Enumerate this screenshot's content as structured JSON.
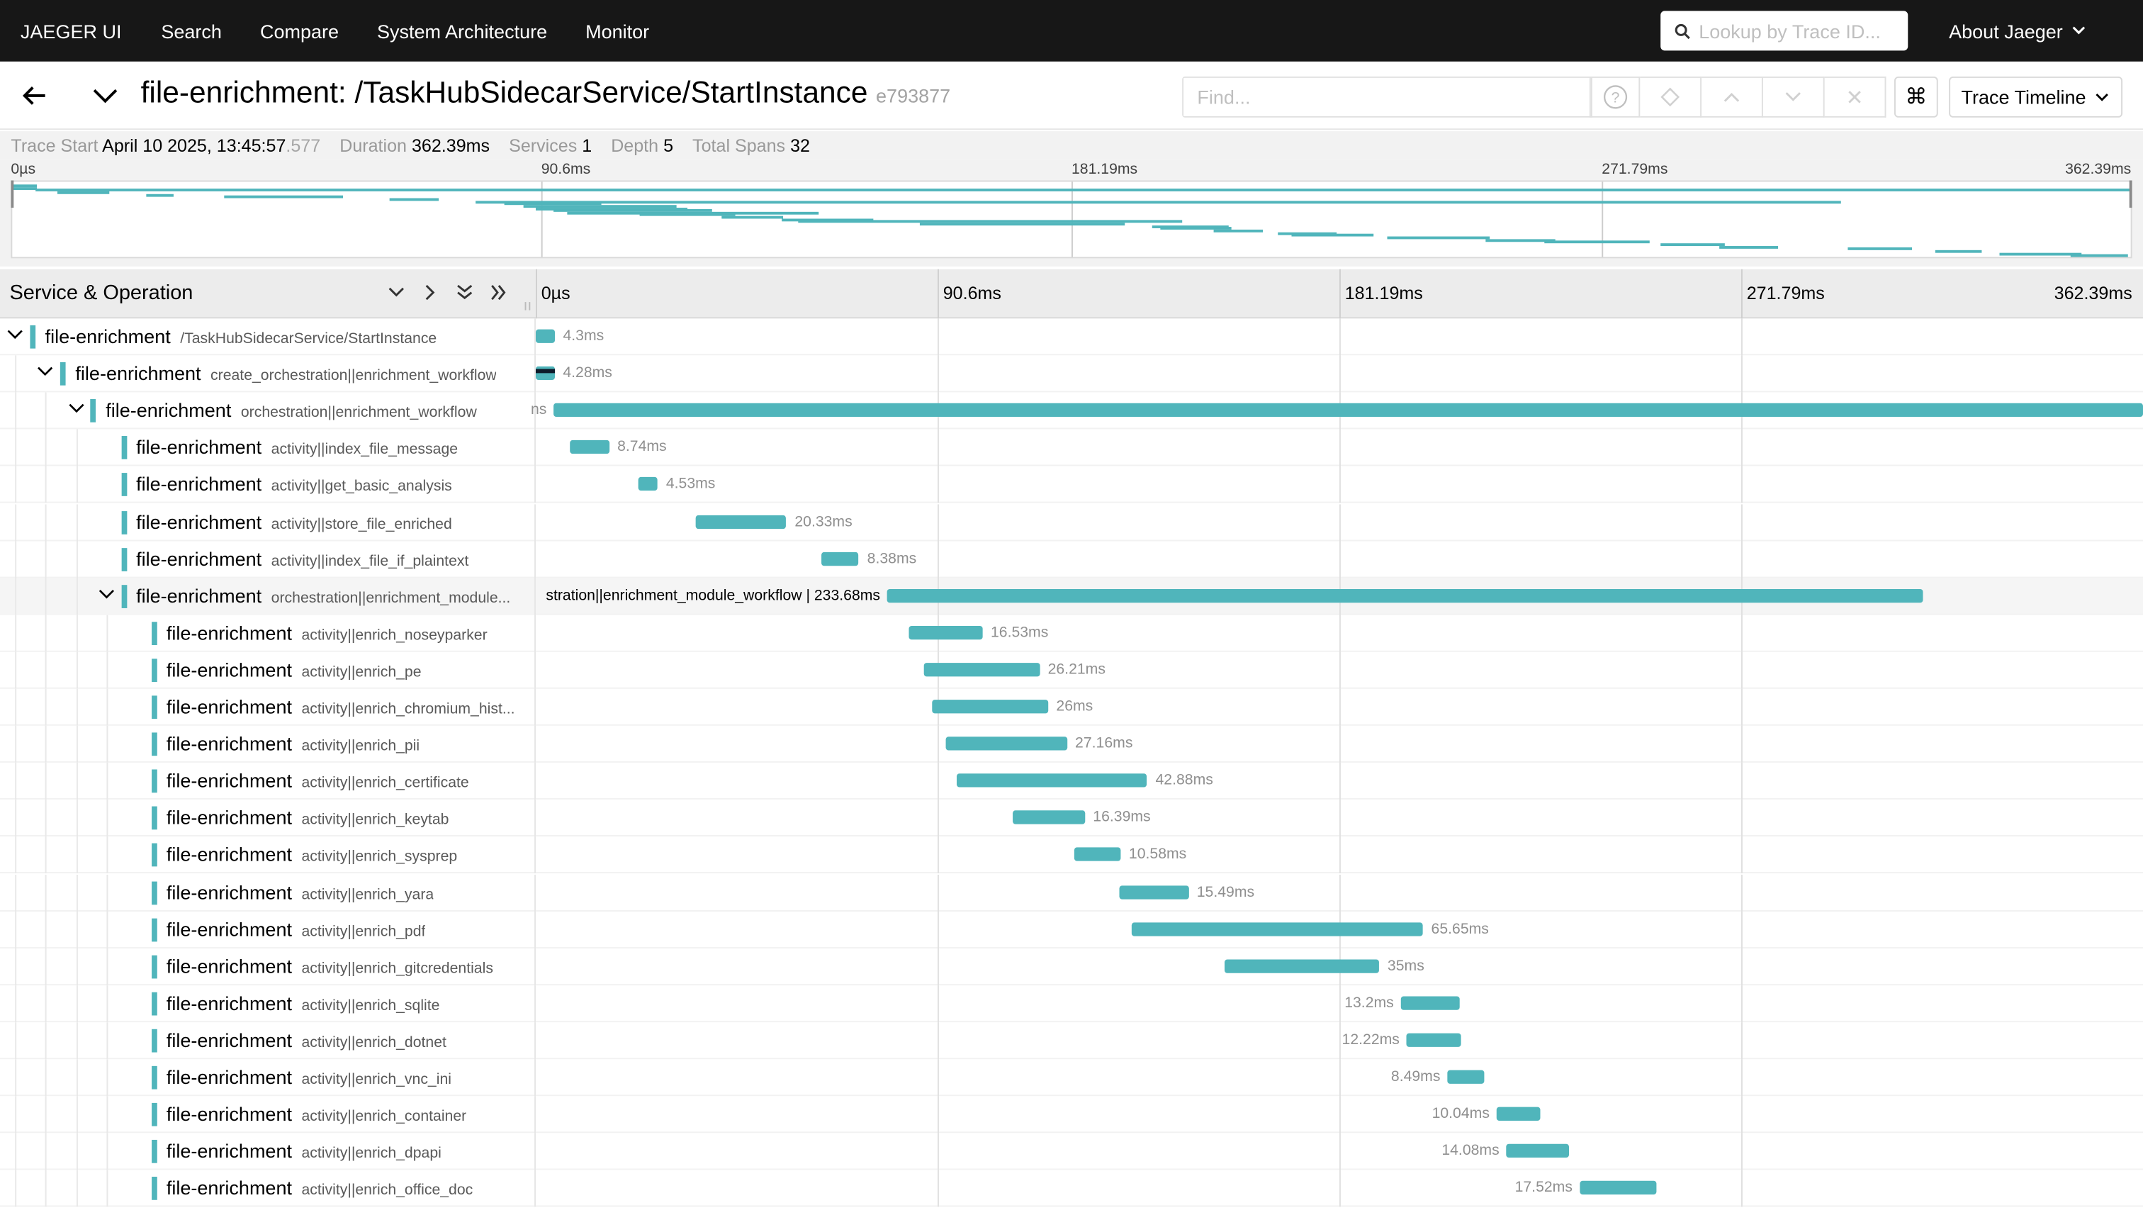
{
  "nav": {
    "brand": "JAEGER UI",
    "links": [
      "Search",
      "Compare",
      "System Architecture",
      "Monitor"
    ],
    "lookup_placeholder": "Lookup by Trace ID...",
    "about": "About Jaeger"
  },
  "trace": {
    "title": "file-enrichment: /TaskHubSidecarService/StartInstance",
    "id": "e793877",
    "find_placeholder": "Find...",
    "view": "Trace Timeline",
    "cmd_glyph": "⌘"
  },
  "summary": {
    "start_label": "Trace Start",
    "start_value": "April 10 2025, 13:45:57",
    "start_ms": ".577",
    "duration_label": "Duration",
    "duration_value": "362.39ms",
    "services_label": "Services",
    "services_value": "1",
    "depth_label": "Depth",
    "depth_value": "5",
    "spans_label": "Total Spans",
    "spans_value": "32"
  },
  "ticks": [
    "0µs",
    "90.6ms",
    "181.19ms",
    "271.79ms",
    "362.39ms"
  ],
  "timeline_header": "Service & Operation",
  "trace_duration_ms": 362.39,
  "spans": [
    {
      "service": "file-enrichment",
      "op": "/TaskHubSidecarService/StartInstance",
      "depth": 0,
      "start": 0.0,
      "dur": 4.3,
      "label": "4.3ms",
      "toggle": true
    },
    {
      "service": "file-enrichment",
      "op": "create_orchestration||enrichment_workflow",
      "depth": 1,
      "start": 0.0,
      "dur": 4.28,
      "label": "4.28ms",
      "toggle": true
    },
    {
      "service": "file-enrichment",
      "op": "orchestration||enrichment_workflow",
      "depth": 2,
      "start": 4.0,
      "dur": 358.39,
      "label": "ns",
      "label_left": true,
      "toggle": true
    },
    {
      "service": "file-enrichment",
      "op": "activity||index_file_message",
      "depth": 3,
      "start": 7.8,
      "dur": 8.74,
      "label": "8.74ms"
    },
    {
      "service": "file-enrichment",
      "op": "activity||get_basic_analysis",
      "depth": 3,
      "start": 23.0,
      "dur": 4.53,
      "label": "4.53ms"
    },
    {
      "service": "file-enrichment",
      "op": "activity||store_file_enriched",
      "depth": 3,
      "start": 36.2,
      "dur": 20.33,
      "label": "20.33ms"
    },
    {
      "service": "file-enrichment",
      "op": "activity||index_file_if_plaintext",
      "depth": 3,
      "start": 64.5,
      "dur": 8.38,
      "label": "8.38ms"
    },
    {
      "service": "file-enrichment",
      "op": "orchestration||enrichment_module...",
      "depth": 3,
      "start": 79.2,
      "dur": 233.68,
      "label": "stration||enrichment_module_workflow | 233.68ms",
      "label_left": true,
      "dark": true,
      "toggle": true,
      "highlight": true
    },
    {
      "service": "file-enrichment",
      "op": "activity||enrich_noseyparker",
      "depth": 4,
      "start": 84.2,
      "dur": 16.53,
      "label": "16.53ms"
    },
    {
      "service": "file-enrichment",
      "op": "activity||enrich_pe",
      "depth": 4,
      "start": 87.4,
      "dur": 26.21,
      "label": "26.21ms"
    },
    {
      "service": "file-enrichment",
      "op": "activity||enrich_chromium_hist...",
      "depth": 4,
      "start": 89.5,
      "dur": 26.0,
      "label": "26ms"
    },
    {
      "service": "file-enrichment",
      "op": "activity||enrich_pii",
      "depth": 4,
      "start": 92.6,
      "dur": 27.16,
      "label": "27.16ms"
    },
    {
      "service": "file-enrichment",
      "op": "activity||enrich_certificate",
      "depth": 4,
      "start": 95.0,
      "dur": 42.88,
      "label": "42.88ms"
    },
    {
      "service": "file-enrichment",
      "op": "activity||enrich_keytab",
      "depth": 4,
      "start": 107.4,
      "dur": 16.39,
      "label": "16.39ms"
    },
    {
      "service": "file-enrichment",
      "op": "activity||enrich_sysprep",
      "depth": 4,
      "start": 121.3,
      "dur": 10.58,
      "label": "10.58ms"
    },
    {
      "service": "file-enrichment",
      "op": "activity||enrich_yara",
      "depth": 4,
      "start": 131.7,
      "dur": 15.49,
      "label": "15.49ms"
    },
    {
      "service": "file-enrichment",
      "op": "activity||enrich_pdf",
      "depth": 4,
      "start": 134.4,
      "dur": 65.65,
      "label": "65.65ms"
    },
    {
      "service": "file-enrichment",
      "op": "activity||enrich_gitcredentials",
      "depth": 4,
      "start": 155.2,
      "dur": 35.0,
      "label": "35ms"
    },
    {
      "service": "file-enrichment",
      "op": "activity||enrich_sqlite",
      "depth": 4,
      "start": 195.0,
      "dur": 13.2,
      "label": "13.2ms",
      "label_left": true
    },
    {
      "service": "file-enrichment",
      "op": "activity||enrich_dotnet",
      "depth": 4,
      "start": 196.3,
      "dur": 12.22,
      "label": "12.22ms",
      "label_left": true
    },
    {
      "service": "file-enrichment",
      "op": "activity||enrich_vnc_ini",
      "depth": 4,
      "start": 205.5,
      "dur": 8.49,
      "label": "8.49ms",
      "label_left": true
    },
    {
      "service": "file-enrichment",
      "op": "activity||enrich_container",
      "depth": 4,
      "start": 216.6,
      "dur": 10.04,
      "label": "10.04ms",
      "label_left": true
    },
    {
      "service": "file-enrichment",
      "op": "activity||enrich_dpapi",
      "depth": 4,
      "start": 218.8,
      "dur": 14.08,
      "label": "14.08ms",
      "label_left": true
    },
    {
      "service": "file-enrichment",
      "op": "activity||enrich_office_doc",
      "depth": 4,
      "start": 235.3,
      "dur": 17.52,
      "label": "17.52ms",
      "label_left": true
    }
  ],
  "minimap_bars": [
    [
      0,
      4.3,
      0
    ],
    [
      0,
      4.28,
      1
    ],
    [
      4,
      358.39,
      2
    ],
    [
      7.8,
      8.74,
      3
    ],
    [
      23,
      4.53,
      4
    ],
    [
      36.2,
      20.33,
      5
    ],
    [
      64.5,
      8.38,
      6
    ],
    [
      79.2,
      233.68,
      7
    ],
    [
      84.2,
      16.53,
      8
    ],
    [
      87.4,
      26.21,
      9
    ],
    [
      89.5,
      26.0,
      10
    ],
    [
      92.6,
      27.16,
      11
    ],
    [
      95,
      42.88,
      12
    ],
    [
      107.4,
      16.39,
      13
    ],
    [
      121.3,
      10.58,
      14
    ],
    [
      131.7,
      15.49,
      15
    ],
    [
      134.4,
      65.65,
      16
    ],
    [
      155.2,
      35,
      17
    ],
    [
      195,
      13.2,
      18
    ],
    [
      196.3,
      12.22,
      19
    ],
    [
      205.5,
      8.49,
      20
    ],
    [
      216.6,
      10.04,
      21
    ],
    [
      218.8,
      14.08,
      22
    ],
    [
      235.3,
      17.52,
      23
    ],
    [
      252,
      12,
      24
    ],
    [
      262,
      18,
      25
    ],
    [
      282,
      11,
      26
    ],
    [
      292,
      10,
      27
    ],
    [
      314,
      11,
      28
    ],
    [
      329,
      8,
      29
    ],
    [
      340,
      14,
      30
    ],
    [
      352,
      10,
      31
    ]
  ]
}
